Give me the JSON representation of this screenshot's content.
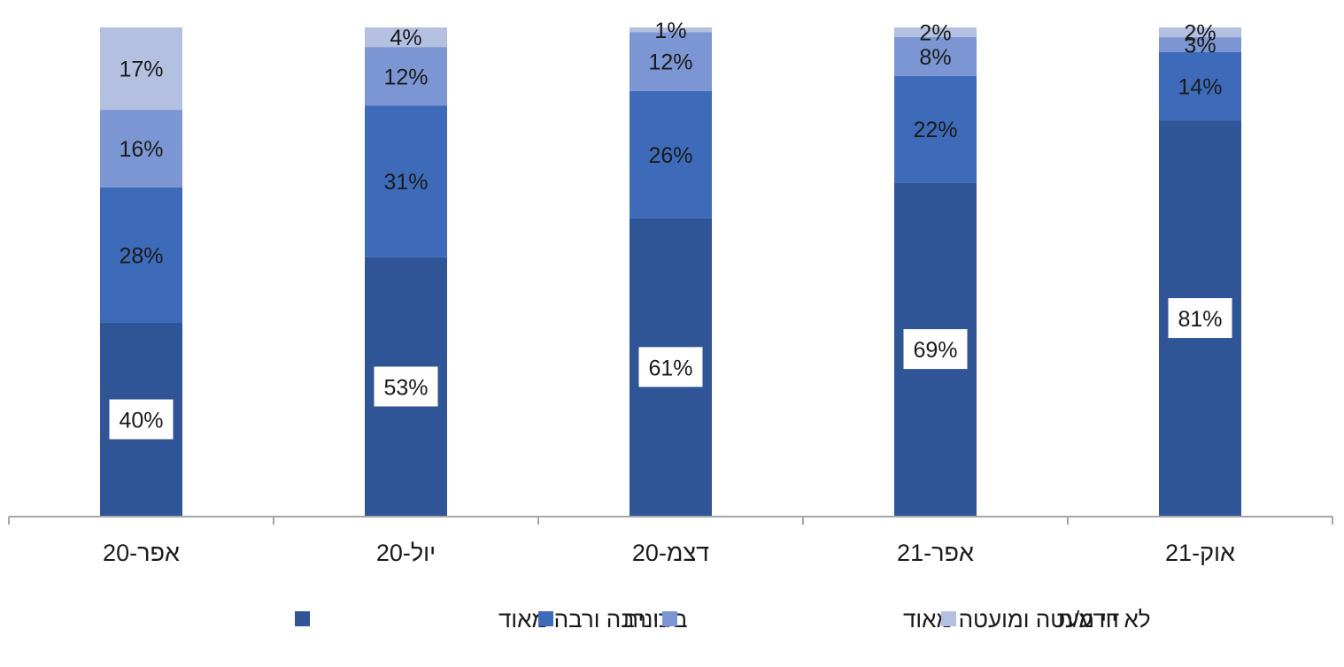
{
  "chart_data": {
    "type": "bar",
    "stacked": true,
    "categories": [
      "אפר-20",
      "יול-20",
      "דצמ-20",
      "אפר-21",
      "אוק-21"
    ],
    "series": [
      {
        "name": "די רבה ורבה מאוד",
        "color": "#2f5597",
        "values": [
          40,
          53,
          61,
          69,
          81
        ],
        "labels": [
          "40%",
          "53%",
          "61%",
          "69%",
          "81%"
        ],
        "boxed_labels": true
      },
      {
        "name": "בינונית",
        "color": "#3e6bb9",
        "values": [
          28,
          31,
          26,
          22,
          14
        ],
        "labels": [
          "28%",
          "31%",
          "26%",
          "22%",
          "14%"
        ]
      },
      {
        "name": "די מעטה ומועטה מאוד",
        "color": "#7b96d3",
        "values": [
          16,
          12,
          12,
          8,
          3
        ],
        "labels": [
          "16%",
          "12%",
          "12%",
          "8%",
          "3%"
        ]
      },
      {
        "name": "לא יודע/ת",
        "color": "#b3c0e0",
        "values": [
          17,
          4,
          1,
          2,
          2
        ],
        "labels": [
          "17%",
          "4%",
          "1%",
          "2%",
          "2%"
        ]
      }
    ],
    "ylim": [
      0,
      100
    ],
    "grid": false,
    "legend_position": "bottom",
    "axis_color": "#a6a6a6"
  }
}
